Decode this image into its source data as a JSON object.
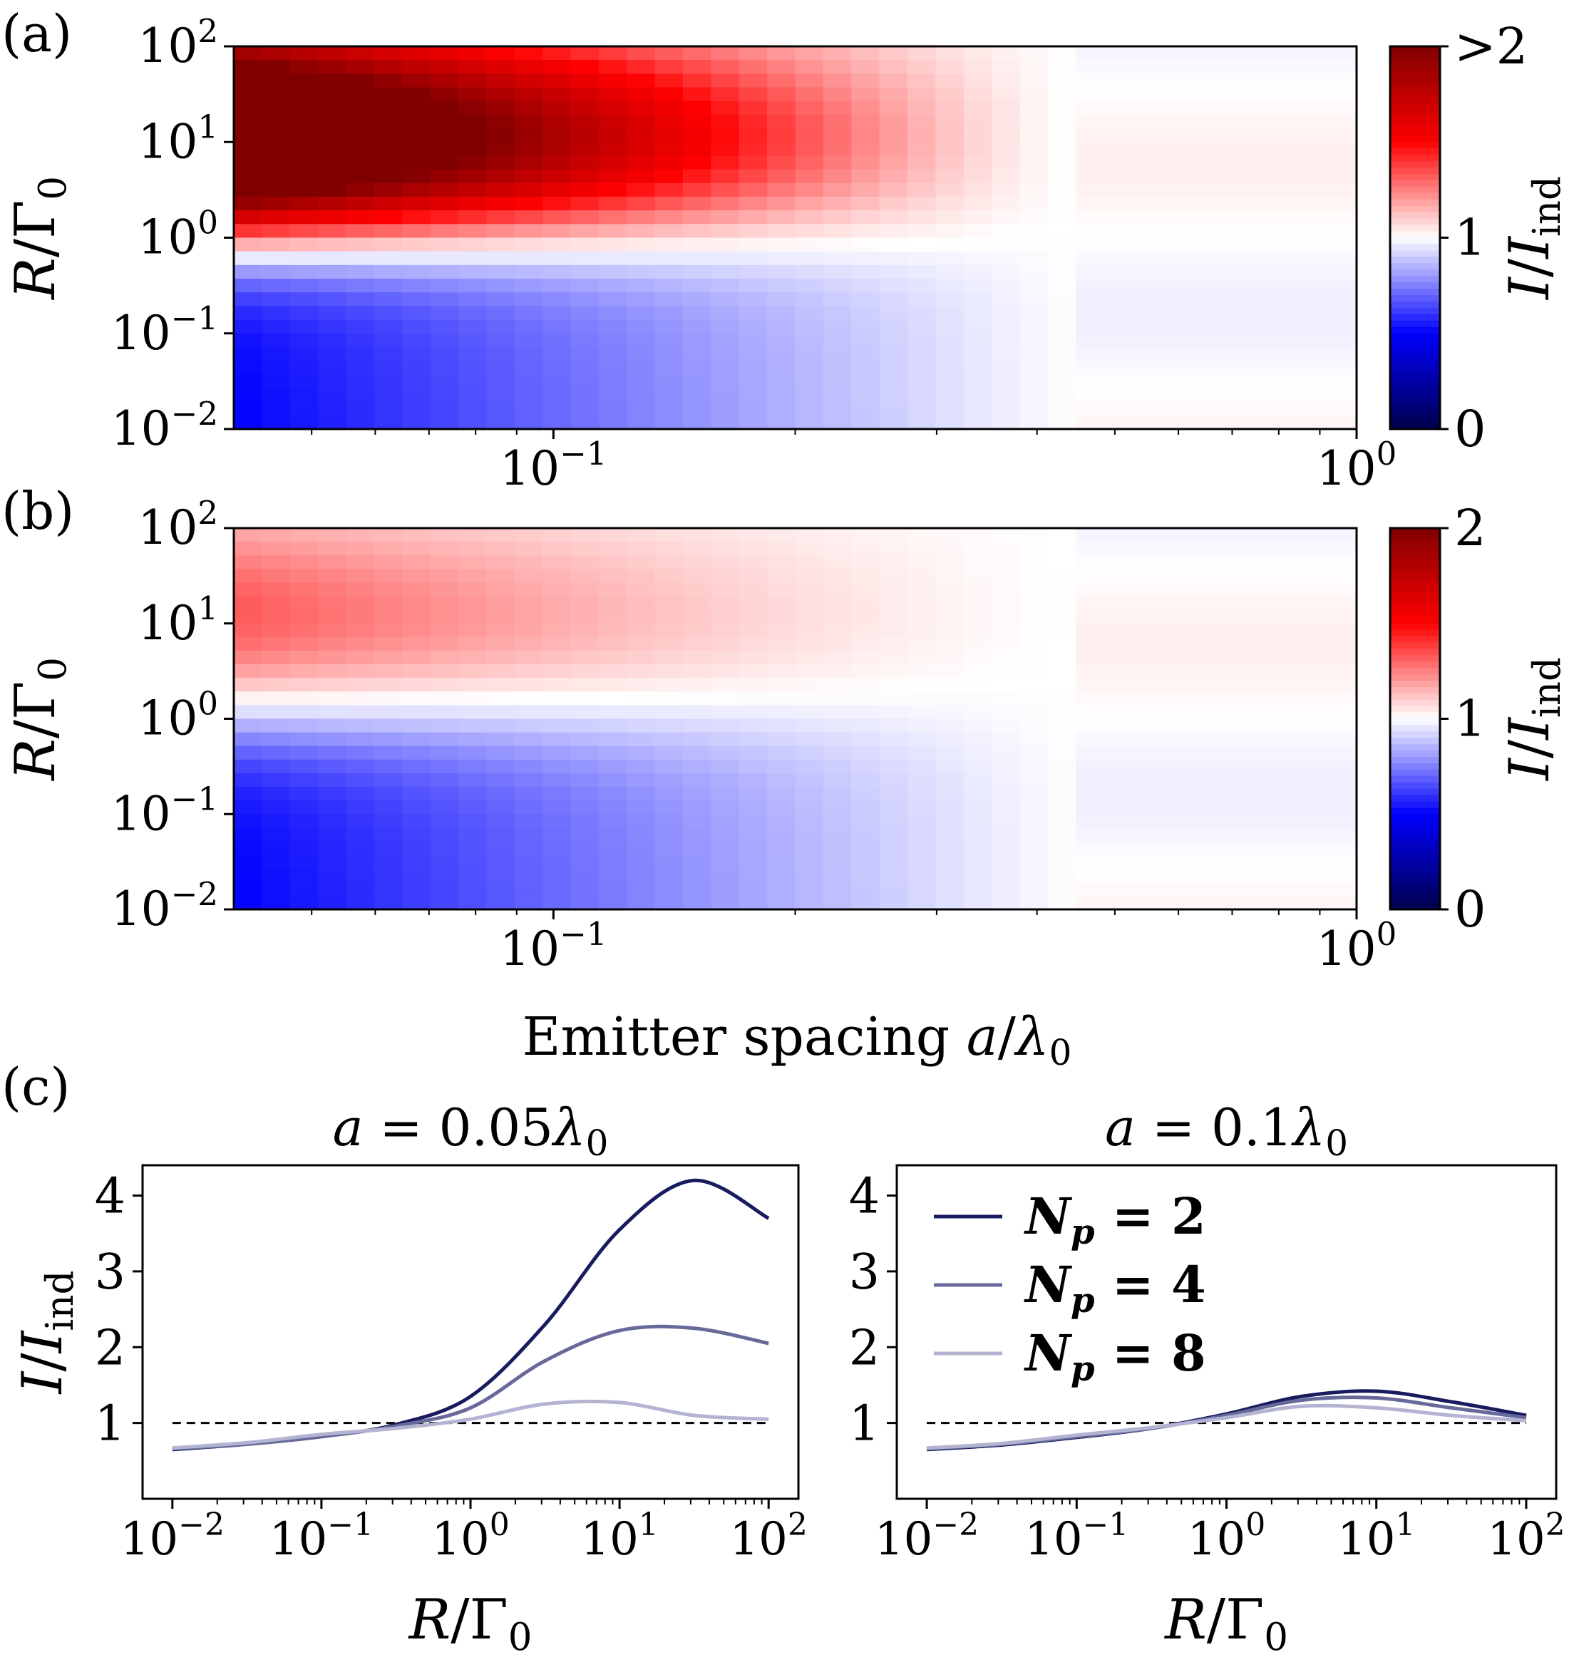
{
  "chart_data": [
    {
      "panel": "(a)",
      "type": "heatmap",
      "x_scale": "log",
      "y_scale": "log",
      "xlim": [
        0.04,
        1.0
      ],
      "ylim": [
        0.01,
        100
      ],
      "x_ticks": [
        {
          "value": 0.1,
          "base": "10",
          "exp": "−1"
        },
        {
          "value": 1.0,
          "base": "10",
          "exp": "0"
        }
      ],
      "y_ticks": [
        {
          "value": 100,
          "base": "10",
          "exp": "2"
        },
        {
          "value": 10,
          "base": "10",
          "exp": "1"
        },
        {
          "value": 1,
          "base": "10",
          "exp": "0"
        },
        {
          "value": 0.1,
          "base": "10",
          "exp": "−1"
        },
        {
          "value": 0.01,
          "base": "10",
          "exp": "−2"
        }
      ],
      "ylabel": "R/Γ0",
      "colorbar": {
        "label": "I/Iind",
        "min": 0,
        "max": 2,
        "ticks": [
          "0",
          "1",
          ">2"
        ],
        "colormap": "seismic"
      },
      "model": {
        "gain_amplitude": 1.7,
        "loss_amplitude": 0.5
      }
    },
    {
      "panel": "(b)",
      "type": "heatmap",
      "x_scale": "log",
      "y_scale": "log",
      "xlim": [
        0.04,
        1.0
      ],
      "ylim": [
        0.01,
        100
      ],
      "x_ticks": [
        {
          "value": 0.1,
          "base": "10",
          "exp": "−1"
        },
        {
          "value": 1.0,
          "base": "10",
          "exp": "0"
        }
      ],
      "y_ticks": [
        {
          "value": 100,
          "base": "10",
          "exp": "2"
        },
        {
          "value": 10,
          "base": "10",
          "exp": "1"
        },
        {
          "value": 1,
          "base": "10",
          "exp": "0"
        },
        {
          "value": 0.1,
          "base": "10",
          "exp": "−1"
        },
        {
          "value": 0.01,
          "base": "10",
          "exp": "−2"
        }
      ],
      "ylabel": "R/Γ0",
      "xlabel": "Emitter spacing a/λ0",
      "colorbar": {
        "label": "I/Iind",
        "min": 0,
        "max": 2,
        "ticks": [
          "0",
          "1",
          "2"
        ],
        "colormap": "seismic"
      },
      "model": {
        "gain_amplitude": 0.35,
        "loss_amplitude": 0.5
      }
    },
    {
      "panel": "(c) left",
      "type": "line",
      "title": "a = 0.05λ0",
      "x_scale": "log",
      "x": [
        0.01,
        0.0316,
        0.1,
        0.316,
        1,
        3.16,
        10,
        31.6,
        100
      ],
      "xlim": [
        0.01,
        100
      ],
      "ylim": [
        0.0,
        4.4
      ],
      "ylabel": "I/Iind",
      "xlabel": "R/Γ0",
      "x_ticks": [
        {
          "value": 0.01,
          "base": "10",
          "exp": "−2"
        },
        {
          "value": 0.1,
          "base": "10",
          "exp": "−1"
        },
        {
          "value": 1,
          "base": "10",
          "exp": "0"
        },
        {
          "value": 10,
          "base": "10",
          "exp": "1"
        },
        {
          "value": 100,
          "base": "10",
          "exp": "2"
        }
      ],
      "y_ticks": [
        "1",
        "2",
        "3",
        "4"
      ],
      "reference_line": 1,
      "series": [
        {
          "name": "Np = 2",
          "color": "#181c5e",
          "values": [
            0.65,
            0.72,
            0.82,
            0.98,
            1.35,
            2.3,
            3.55,
            4.2,
            3.7
          ]
        },
        {
          "name": "Np = 4",
          "color": "#67699a",
          "values": [
            0.66,
            0.72,
            0.82,
            0.96,
            1.2,
            1.82,
            2.22,
            2.25,
            2.05
          ]
        },
        {
          "name": "Np = 8",
          "color": "#b3b3d2",
          "values": [
            0.67,
            0.74,
            0.85,
            0.93,
            1.05,
            1.25,
            1.27,
            1.1,
            1.05
          ]
        }
      ]
    },
    {
      "panel": "(c) right",
      "type": "line",
      "title": "a = 0.1λ0",
      "x_scale": "log",
      "x": [
        0.01,
        0.0316,
        0.1,
        0.316,
        1,
        3.16,
        10,
        31.6,
        100
      ],
      "xlim": [
        0.01,
        100
      ],
      "ylim": [
        0.0,
        4.4
      ],
      "xlabel": "R/Γ0",
      "x_ticks": [
        {
          "value": 0.01,
          "base": "10",
          "exp": "−2"
        },
        {
          "value": 0.1,
          "base": "10",
          "exp": "−1"
        },
        {
          "value": 1,
          "base": "10",
          "exp": "0"
        },
        {
          "value": 10,
          "base": "10",
          "exp": "1"
        },
        {
          "value": 100,
          "base": "10",
          "exp": "2"
        }
      ],
      "y_ticks": [
        "1",
        "2",
        "3",
        "4"
      ],
      "reference_line": 1,
      "legend": {
        "location": "upper-left",
        "entries": [
          "Np = 2",
          "Np = 4",
          "Np = 8"
        ]
      },
      "series": [
        {
          "name": "Np = 2",
          "color": "#181c5e",
          "values": [
            0.65,
            0.71,
            0.81,
            0.93,
            1.12,
            1.35,
            1.42,
            1.28,
            1.1
          ]
        },
        {
          "name": "Np = 4",
          "color": "#67699a",
          "values": [
            0.66,
            0.72,
            0.82,
            0.93,
            1.1,
            1.3,
            1.33,
            1.2,
            1.07
          ]
        },
        {
          "name": "Np = 8",
          "color": "#b3b3d2",
          "values": [
            0.67,
            0.73,
            0.84,
            0.94,
            1.07,
            1.22,
            1.2,
            1.1,
            1.03
          ]
        }
      ]
    }
  ],
  "labels": {
    "panel_a": "(a)",
    "panel_b": "(b)",
    "panel_c": "(c)",
    "xlabel_top": "Emitter spacing a/λ0",
    "dashed_reference": "1"
  }
}
